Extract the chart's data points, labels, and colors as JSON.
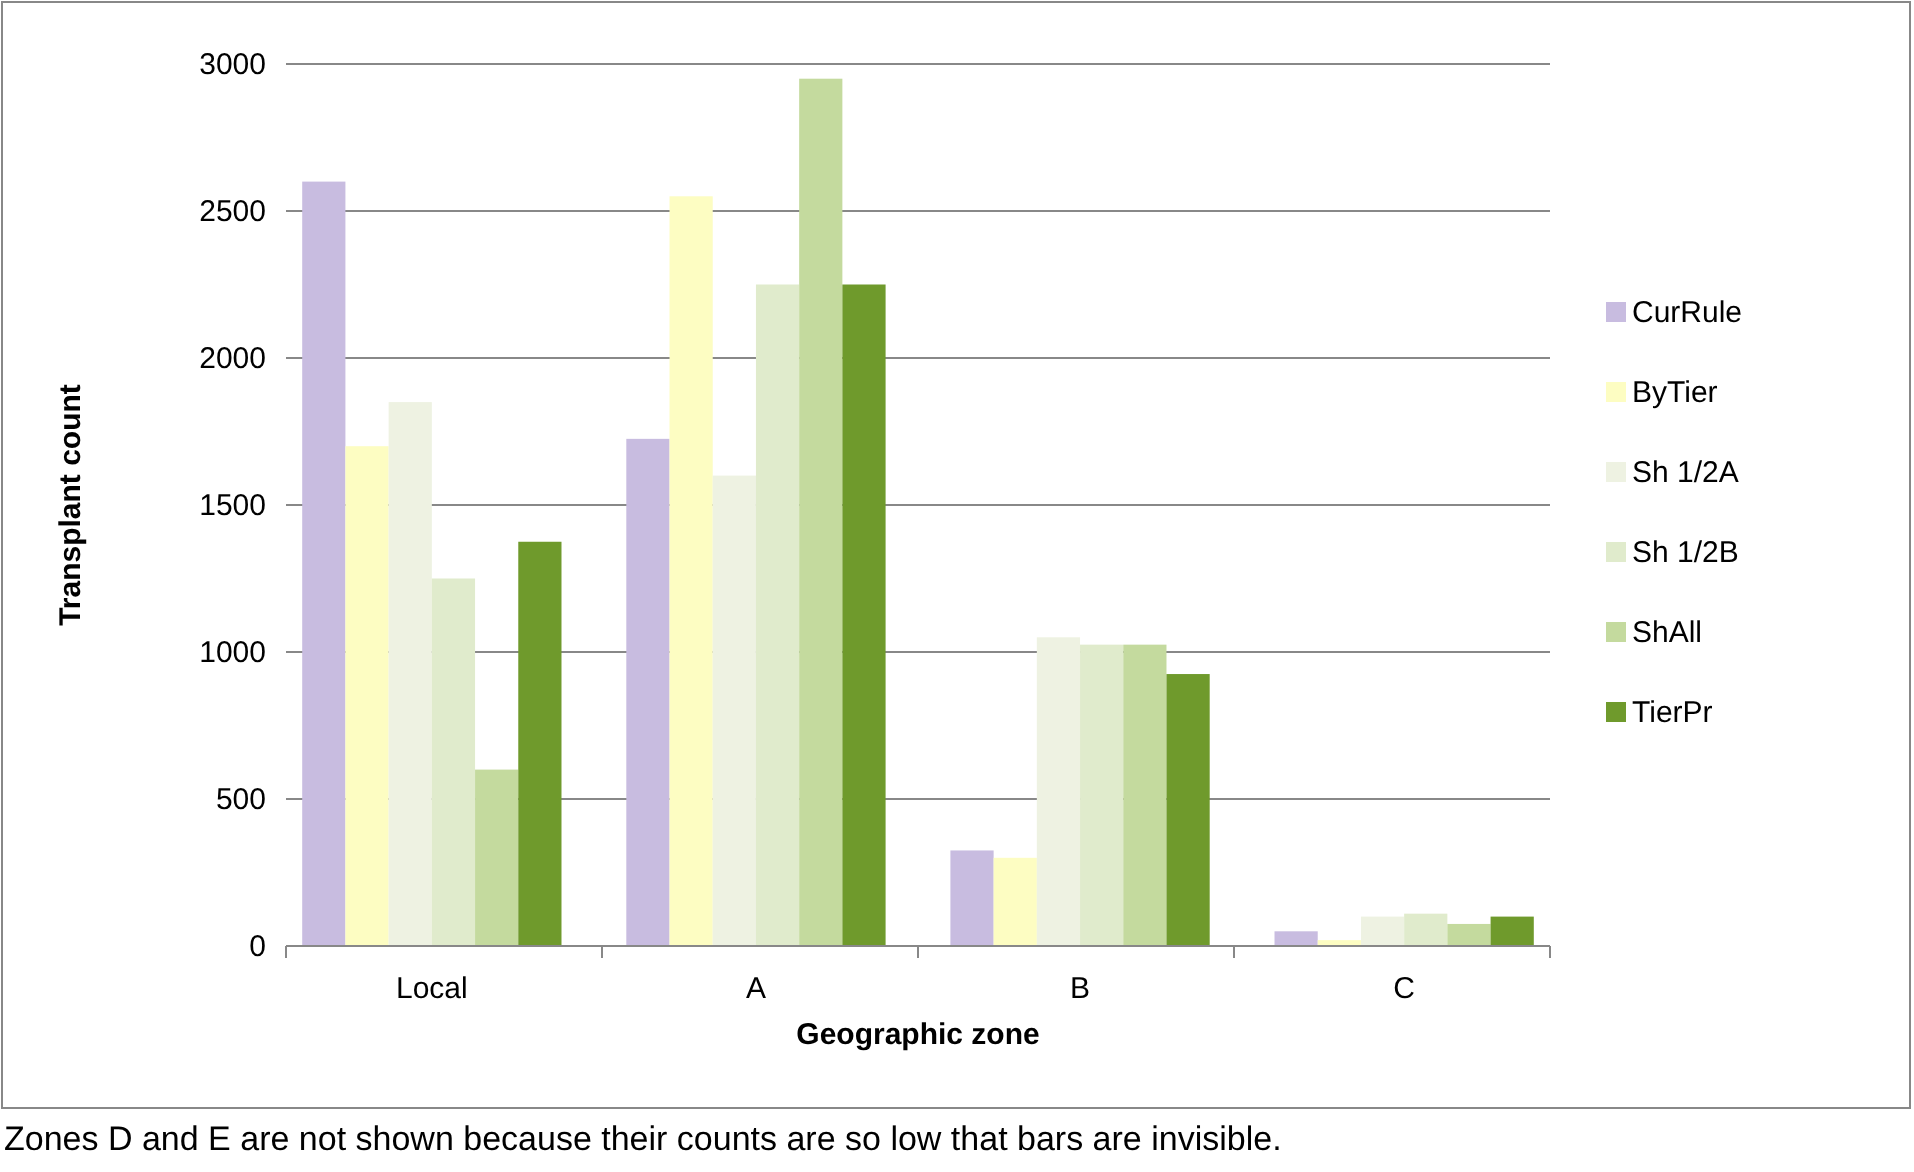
{
  "chart_data": {
    "type": "bar",
    "xlabel": "Geographic zone",
    "ylabel": "Transplant count",
    "categories": [
      "Local",
      "A",
      "B",
      "C"
    ],
    "series": [
      {
        "name": "CurRule",
        "color": "#c8bce0",
        "values": [
          2600,
          1725,
          325,
          50
        ]
      },
      {
        "name": "ByTier",
        "color": "#fdfdc2",
        "values": [
          1700,
          2550,
          300,
          20
        ]
      },
      {
        "name": "Sh 1/2A",
        "color": "#eef2e2",
        "values": [
          1850,
          1600,
          1050,
          100
        ]
      },
      {
        "name": "Sh 1/2B",
        "color": "#e0ebcc",
        "values": [
          1250,
          2250,
          1025,
          110
        ]
      },
      {
        "name": "ShAll",
        "color": "#c4da9e",
        "values": [
          600,
          2950,
          1025,
          75
        ]
      },
      {
        "name": "TierPr",
        "color": "#6f9a2c",
        "values": [
          1375,
          2250,
          925,
          100
        ]
      }
    ],
    "ylim": [
      0,
      3000
    ],
    "yticks": [
      0,
      500,
      1000,
      1500,
      2000,
      2500,
      3000
    ],
    "grid": "y",
    "legend": "right",
    "annotations": [
      "Zones D and E are not shown because their counts are so low that bars are invisible."
    ]
  }
}
